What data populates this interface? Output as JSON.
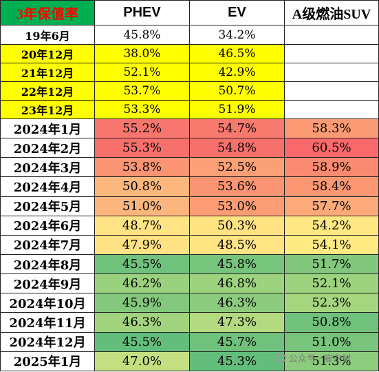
{
  "colors": {
    "header_accent_bg": "#00b050",
    "header_accent_text": "#ff0000",
    "highlight_yellow": "#ffff00",
    "heat_red_high": "#f8696b",
    "heat_orange": "#fbad79",
    "heat_yellow": "#ffe084",
    "heat_green_low": "#63be7b"
  },
  "table": {
    "headers": [
      "3年保值率",
      "PHEV",
      "EV",
      "A级燃油SUV"
    ],
    "rows": [
      {
        "period": "19年6月",
        "phev": "45.8%",
        "ev": "34.2%",
        "suv": "",
        "colors": [
          "#ffffff",
          "#ffffff",
          "#ffffff",
          "#ffffff"
        ]
      },
      {
        "period": "20年12月",
        "phev": "38.0%",
        "ev": "46.5%",
        "suv": "",
        "colors": [
          "#ffff00",
          "#ffff00",
          "#ffff00",
          "#ffffff"
        ]
      },
      {
        "period": "21年12月",
        "phev": "52.1%",
        "ev": "42.9%",
        "suv": "",
        "colors": [
          "#ffff00",
          "#ffff00",
          "#ffff00",
          "#ffffff"
        ]
      },
      {
        "period": "22年12月",
        "phev": "53.7%",
        "ev": "50.7%",
        "suv": "",
        "colors": [
          "#ffff00",
          "#ffff00",
          "#ffff00",
          "#ffffff"
        ]
      },
      {
        "period": "23年12月",
        "phev": "53.3%",
        "ev": "51.9%",
        "suv": "",
        "colors": [
          "#ffff00",
          "#ffff00",
          "#ffff00",
          "#ffffff"
        ]
      },
      {
        "period": "2024年1月",
        "phev": "55.2%",
        "ev": "54.7%",
        "suv": "58.3%",
        "colors": [
          "#ffffff",
          "#f8766e",
          "#f87a6f",
          "#fb9b75"
        ]
      },
      {
        "period": "2024年2月",
        "phev": "55.3%",
        "ev": "54.8%",
        "suv": "60.5%",
        "colors": [
          "#ffffff",
          "#f8706c",
          "#f8706c",
          "#f8696b"
        ]
      },
      {
        "period": "2024年3月",
        "phev": "53.8%",
        "ev": "52.5%",
        "suv": "58.9%",
        "colors": [
          "#ffffff",
          "#fa9473",
          "#fba077",
          "#fa8b71"
        ]
      },
      {
        "period": "2024年4月",
        "phev": "50.8%",
        "ev": "53.6%",
        "suv": "58.4%",
        "colors": [
          "#ffffff",
          "#fcb77d",
          "#fa9473",
          "#fb9873"
        ]
      },
      {
        "period": "2024年5月",
        "phev": "51.0%",
        "ev": "53.0%",
        "suv": "57.7%",
        "colors": [
          "#ffffff",
          "#fcb57c",
          "#fb9c75",
          "#fcaa79"
        ]
      },
      {
        "period": "2024年6月",
        "phev": "48.7%",
        "ev": "50.3%",
        "suv": "54.2%",
        "colors": [
          "#ffffff",
          "#ffe384",
          "#ffe383",
          "#ffe884"
        ]
      },
      {
        "period": "2024年7月",
        "phev": "47.9%",
        "ev": "48.5%",
        "suv": "54.1%",
        "colors": [
          "#ffffff",
          "#ffe283",
          "#ffe484",
          "#ffea84"
        ]
      },
      {
        "period": "2024年8月",
        "phev": "45.5%",
        "ev": "45.8%",
        "suv": "51.7%",
        "colors": [
          "#ffffff",
          "#6fc17c",
          "#77c47d",
          "#82c77d"
        ]
      },
      {
        "period": "2024年9月",
        "phev": "46.2%",
        "ev": "46.8%",
        "suv": "52.1%",
        "colors": [
          "#ffffff",
          "#9ad17f",
          "#9dd27f",
          "#9dd27f"
        ]
      },
      {
        "period": "2024年10月",
        "phev": "45.9%",
        "ev": "46.3%",
        "suv": "52.3%",
        "colors": [
          "#ffffff",
          "#84c87d",
          "#8ccb7e",
          "#a6d580"
        ]
      },
      {
        "period": "2024年11月",
        "phev": "46.3%",
        "ev": "47.3%",
        "suv": "50.8%",
        "colors": [
          "#ffffff",
          "#a2d480",
          "#b4da81",
          "#6fc17c"
        ]
      },
      {
        "period": "2024年12月",
        "phev": "45.5%",
        "ev": "45.7%",
        "suv": "51.0%",
        "colors": [
          "#ffffff",
          "#63be7b",
          "#6fc17c",
          "#79c47d"
        ]
      },
      {
        "period": "2025年1月",
        "phev": "47.0%",
        "ev": "45.3%",
        "suv": "51.3%",
        "colors": [
          "#ffffff",
          "#c4df82",
          "#63be7b",
          "#8dcc7e"
        ]
      }
    ]
  },
  "watermark": {
    "text": "公众号 · 崔东树",
    "icon": "wechat-icon"
  }
}
